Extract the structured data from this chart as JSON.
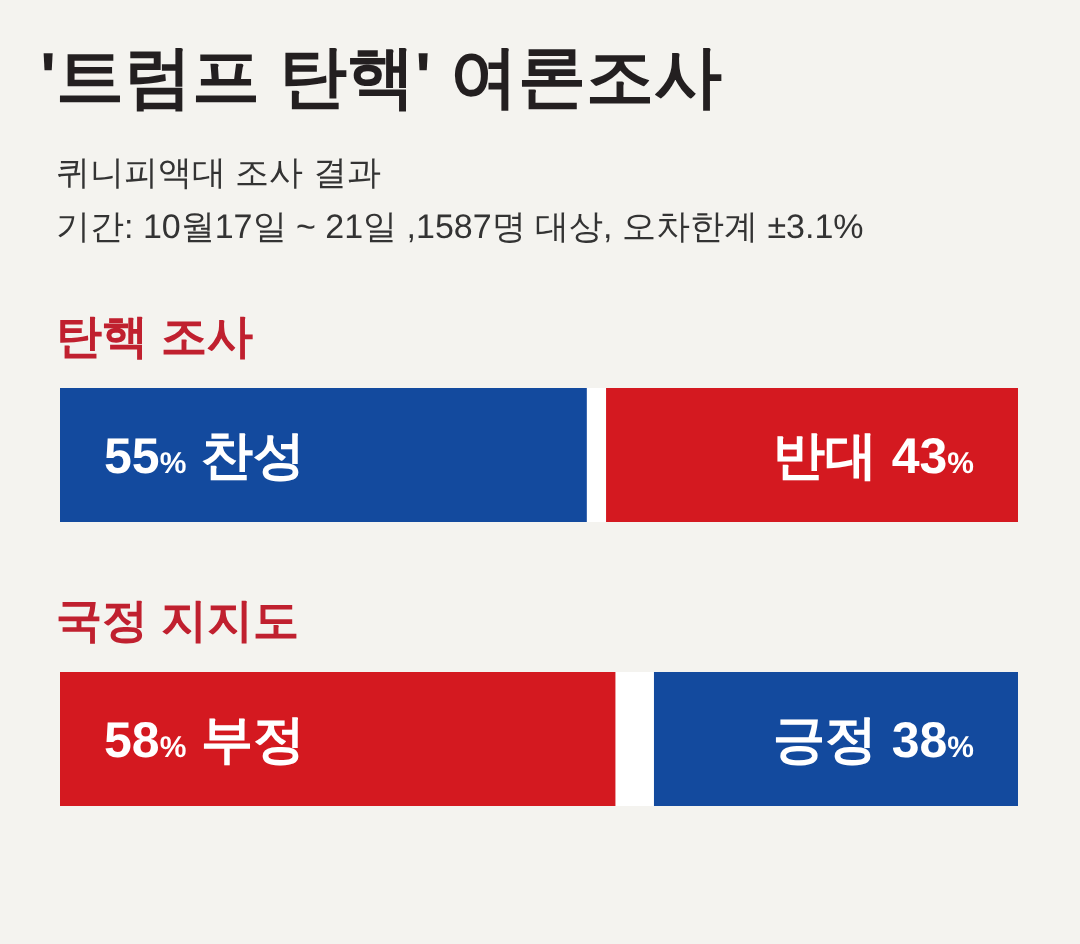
{
  "chart_data": [
    {
      "type": "other",
      "title": "'트럼프 탄핵' 여론조사",
      "subtitle": "퀴니피액대 조사 결과",
      "annotations": [
        "기간: 10월17일 ~ 21일 ,1587명 대상, 오차한계 ±3.1%"
      ]
    },
    {
      "type": "bar",
      "title": "탄핵 조사",
      "orientation": "horizontal",
      "stacked": true,
      "categories": [
        null
      ],
      "xlim": [
        0,
        100
      ],
      "tick_labels": false,
      "series": [
        {
          "name": "찬성",
          "color": "#134a9e",
          "values": [
            55
          ],
          "value_labels": [
            "55%"
          ]
        },
        {
          "color": "#ffffff",
          "values": [
            2
          ]
        },
        {
          "name": "반대",
          "color": "#d41920",
          "values": [
            43
          ],
          "value_labels": [
            "43%"
          ]
        }
      ]
    },
    {
      "type": "bar",
      "title": "국정 지지도",
      "orientation": "horizontal",
      "stacked": true,
      "categories": [
        null
      ],
      "xlim": [
        0,
        100
      ],
      "tick_labels": false,
      "series": [
        {
          "name": "부정",
          "color": "#d41920",
          "values": [
            58
          ],
          "value_labels": [
            "58%"
          ]
        },
        {
          "color": "#ffffff",
          "values": [
            4
          ]
        },
        {
          "name": "긍정",
          "color": "#134a9e",
          "values": [
            38
          ],
          "value_labels": [
            "38%"
          ]
        }
      ]
    }
  ]
}
